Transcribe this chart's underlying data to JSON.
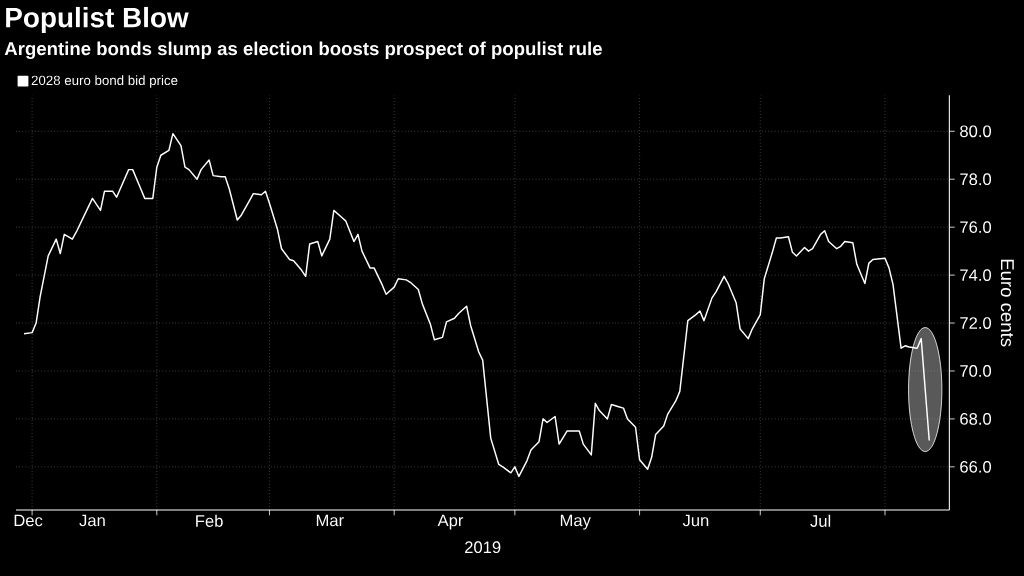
{
  "chart_data": {
    "type": "line",
    "title": "Populist Blow",
    "subtitle": "Argentine bonds slump as election boosts prospect of populist rule",
    "xlabel": "2019",
    "ylabel": "Euro cents",
    "series": [
      {
        "name": "2028 euro bond bid price",
        "color": "#ffffff",
        "x": [
          "2018-12-30",
          "2019-01-01",
          "2019-01-02",
          "2019-01-03",
          "2019-01-05",
          "2019-01-07",
          "2019-01-08",
          "2019-01-09",
          "2019-01-11",
          "2019-01-12",
          "2019-01-14",
          "2019-01-16",
          "2019-01-18",
          "2019-01-19",
          "2019-01-21",
          "2019-01-22",
          "2019-01-25",
          "2019-01-26",
          "2019-01-28",
          "2019-01-29",
          "2019-01-31",
          "2019-02-01",
          "2019-02-02",
          "2019-02-04",
          "2019-02-05",
          "2019-02-07",
          "2019-02-08",
          "2019-02-09",
          "2019-02-11",
          "2019-02-12",
          "2019-02-14",
          "2019-02-15",
          "2019-02-17",
          "2019-02-18",
          "2019-02-19",
          "2019-02-21",
          "2019-02-22",
          "2019-02-24",
          "2019-02-25",
          "2019-02-27",
          "2019-02-28",
          "2019-03-01",
          "2019-03-03",
          "2019-03-04",
          "2019-03-06",
          "2019-03-07",
          "2019-03-09",
          "2019-03-10",
          "2019-03-11",
          "2019-03-13",
          "2019-03-14",
          "2019-03-16",
          "2019-03-17",
          "2019-03-19",
          "2019-03-20",
          "2019-03-22",
          "2019-03-23",
          "2019-03-24",
          "2019-03-26",
          "2019-03-27",
          "2019-03-29",
          "2019-03-30",
          "2019-04-01",
          "2019-04-02",
          "2019-04-04",
          "2019-04-05",
          "2019-04-07",
          "2019-04-08",
          "2019-04-10",
          "2019-04-11",
          "2019-04-13",
          "2019-04-14",
          "2019-04-16",
          "2019-04-17",
          "2019-04-19",
          "2019-04-20",
          "2019-04-22",
          "2019-04-23",
          "2019-04-25",
          "2019-04-27",
          "2019-04-28",
          "2019-04-30",
          "2019-05-01",
          "2019-05-02",
          "2019-05-04",
          "2019-05-05",
          "2019-05-07",
          "2019-05-08",
          "2019-05-09",
          "2019-05-11",
          "2019-05-12",
          "2019-05-14",
          "2019-05-17",
          "2019-05-18",
          "2019-05-20",
          "2019-05-21",
          "2019-05-22",
          "2019-05-24",
          "2019-05-25",
          "2019-05-27",
          "2019-05-28",
          "2019-05-29",
          "2019-05-31",
          "2019-06-01",
          "2019-06-03",
          "2019-06-04",
          "2019-06-05",
          "2019-06-07",
          "2019-06-08",
          "2019-06-10",
          "2019-06-11",
          "2019-06-13",
          "2019-06-15",
          "2019-06-16",
          "2019-06-17",
          "2019-06-19",
          "2019-06-20",
          "2019-06-22",
          "2019-06-23",
          "2019-06-25",
          "2019-06-26",
          "2019-06-28",
          "2019-06-29",
          "2019-07-01",
          "2019-07-02",
          "2019-07-04",
          "2019-07-05",
          "2019-07-06",
          "2019-07-08",
          "2019-07-09",
          "2019-07-10",
          "2019-07-12",
          "2019-07-13",
          "2019-07-14",
          "2019-07-16",
          "2019-07-17",
          "2019-07-18",
          "2019-07-20",
          "2019-07-21",
          "2019-07-22",
          "2019-07-24",
          "2019-07-25",
          "2019-07-27",
          "2019-07-28",
          "2019-07-29",
          "2019-08-01",
          "2019-08-02",
          "2019-08-03",
          "2019-08-05",
          "2019-08-06",
          "2019-08-07",
          "2019-08-09",
          "2019-08-10",
          "2019-08-12"
        ],
        "values": [
          71.55,
          71.6,
          72.0,
          73.1,
          74.8,
          75.5,
          74.9,
          75.7,
          75.5,
          75.8,
          76.5,
          77.2,
          76.7,
          77.5,
          77.5,
          77.25,
          78.4,
          78.4,
          77.6,
          77.2,
          77.2,
          78.5,
          79.0,
          79.2,
          79.9,
          79.4,
          78.5,
          78.4,
          78.0,
          78.4,
          78.8,
          78.15,
          78.1,
          78.1,
          77.6,
          76.3,
          76.5,
          77.1,
          77.4,
          77.35,
          77.5,
          77.0,
          75.9,
          75.1,
          74.65,
          74.6,
          74.2,
          73.95,
          75.3,
          75.4,
          74.8,
          75.5,
          76.7,
          76.4,
          76.25,
          75.4,
          75.7,
          75.0,
          74.3,
          74.3,
          73.6,
          73.2,
          73.5,
          73.85,
          73.8,
          73.7,
          73.4,
          72.8,
          71.95,
          71.3,
          71.4,
          72.05,
          72.2,
          72.4,
          72.7,
          71.9,
          70.8,
          70.45,
          67.2,
          66.1,
          66.0,
          65.75,
          66.0,
          65.6,
          66.25,
          66.7,
          67.05,
          68.0,
          67.85,
          68.1,
          66.95,
          67.5,
          67.5,
          66.95,
          66.5,
          68.65,
          68.35,
          68.0,
          68.6,
          68.5,
          68.45,
          68.0,
          67.65,
          66.3,
          65.9,
          66.4,
          67.35,
          67.7,
          68.2,
          68.75,
          69.15,
          72.1,
          72.35,
          72.5,
          72.1,
          73.05,
          73.3,
          73.95,
          73.65,
          72.85,
          71.75,
          71.35,
          71.75,
          72.35,
          73.85,
          74.95,
          75.55,
          75.55,
          75.6,
          74.95,
          74.8,
          75.15,
          75.0,
          75.1,
          75.7,
          75.85,
          75.4,
          75.1,
          75.2,
          75.4,
          75.35,
          74.45,
          73.65,
          74.5,
          74.65,
          74.7,
          74.3,
          73.6,
          70.95,
          71.05,
          71.0,
          70.95,
          71.35,
          67.1
        ]
      }
    ],
    "xlim": [
      "2018-12-28",
      "2019-08-17"
    ],
    "xticks": [
      {
        "value": "2019-01-01",
        "label": null
      },
      {
        "value": "2019-02-01",
        "label": null
      },
      {
        "value": "2019-03-01",
        "label": null
      },
      {
        "value": "2019-04-01",
        "label": null
      },
      {
        "value": "2019-05-01",
        "label": null
      },
      {
        "value": "2019-06-01",
        "label": null
      },
      {
        "value": "2019-07-01",
        "label": null
      },
      {
        "value": "2019-08-01",
        "label": null
      },
      {
        "value": "2018-12-31",
        "label": "Dec"
      },
      {
        "value": "2019-01-16",
        "label": "Jan"
      },
      {
        "value": "2019-02-14",
        "label": "Feb"
      },
      {
        "value": "2019-03-16",
        "label": "Mar"
      },
      {
        "value": "2019-04-15",
        "label": "Apr"
      },
      {
        "value": "2019-05-16",
        "label": "May"
      },
      {
        "value": "2019-06-15",
        "label": "Jun"
      },
      {
        "value": "2019-07-16",
        "label": "Jul"
      }
    ],
    "ylim": [
      64.2,
      81.5
    ],
    "yticks": [
      {
        "value": 66,
        "label": "66.0"
      },
      {
        "value": 68,
        "label": "68.0"
      },
      {
        "value": 70,
        "label": "70.0"
      },
      {
        "value": 72,
        "label": "72.0"
      },
      {
        "value": 74,
        "label": "74.0"
      },
      {
        "value": 76,
        "label": "76.0"
      },
      {
        "value": 78,
        "label": "78.0"
      },
      {
        "value": 80,
        "label": "80.0"
      }
    ],
    "grid": true,
    "legend": "top left",
    "marker": "none",
    "line_style": "solid"
  }
}
